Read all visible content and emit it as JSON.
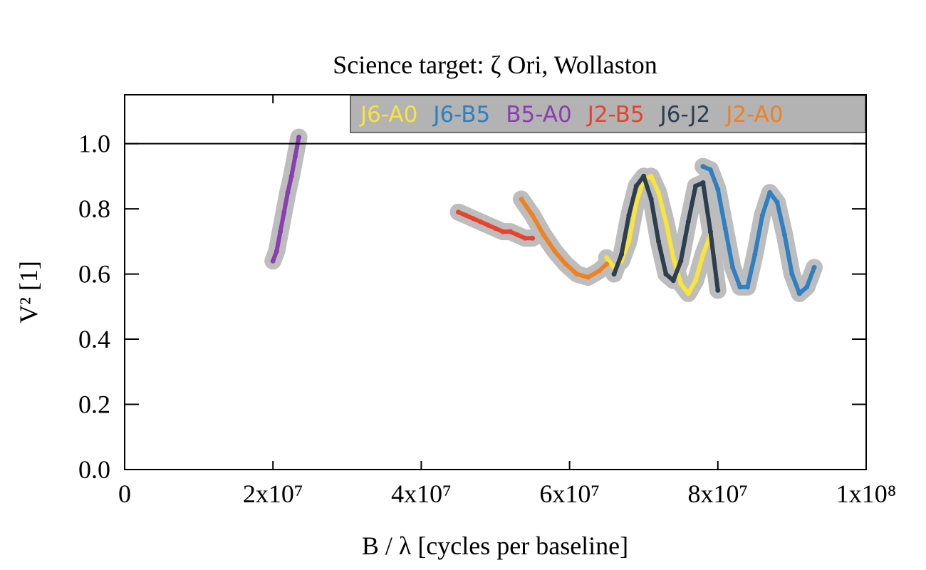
{
  "chart_data": {
    "type": "scatter",
    "title": "Science target: ζ Ori, Wollaston",
    "xlabel": "B / λ [cycles per baseline]",
    "ylabel": "V² [1]",
    "xlim": [
      0,
      100000000
    ],
    "ylim": [
      0,
      1.15
    ],
    "x_ticks": [
      {
        "value": 0,
        "label": "0"
      },
      {
        "value": 20000000,
        "label": "2x10⁷"
      },
      {
        "value": 40000000,
        "label": "4x10⁷"
      },
      {
        "value": 60000000,
        "label": "6x10⁷"
      },
      {
        "value": 80000000,
        "label": "8x10⁷"
      },
      {
        "value": 100000000,
        "label": "1x10⁸"
      }
    ],
    "y_ticks": [
      {
        "value": 0.0,
        "label": "0.0"
      },
      {
        "value": 0.2,
        "label": "0.2"
      },
      {
        "value": 0.4,
        "label": "0.4"
      },
      {
        "value": 0.6,
        "label": "0.6"
      },
      {
        "value": 0.8,
        "label": "0.8"
      },
      {
        "value": 1.0,
        "label": "1.0"
      }
    ],
    "reference_line": 1.0,
    "error_bar_color": "#bdbdbd",
    "legend_position": "top-right",
    "legend_background": "#b3b3b3",
    "series": [
      {
        "name": "J6-A0",
        "color": "#f8e43a",
        "x": [
          65000000,
          66000000,
          67000000,
          68000000,
          69000000,
          70000000,
          71000000,
          72000000,
          73000000,
          74000000,
          75000000,
          76000000,
          77000000,
          78000000,
          79000000
        ],
        "y": [
          0.65,
          0.62,
          0.64,
          0.7,
          0.82,
          0.89,
          0.9,
          0.85,
          0.76,
          0.65,
          0.57,
          0.54,
          0.58,
          0.66,
          0.72
        ]
      },
      {
        "name": "J6-B5",
        "color": "#2f80c0",
        "x": [
          78000000,
          79000000,
          80000000,
          81000000,
          82000000,
          83000000,
          84000000,
          85000000,
          86000000,
          87000000,
          88000000,
          89000000,
          90000000,
          91000000,
          92000000,
          93000000
        ],
        "y": [
          0.93,
          0.92,
          0.86,
          0.74,
          0.62,
          0.56,
          0.56,
          0.66,
          0.78,
          0.85,
          0.82,
          0.72,
          0.6,
          0.54,
          0.56,
          0.62
        ]
      },
      {
        "name": "B5-A0",
        "color": "#8a3fb0",
        "x": [
          20000000,
          20500000,
          21000000,
          21500000,
          22000000,
          22500000,
          23000000,
          23500000
        ],
        "y": [
          0.64,
          0.67,
          0.73,
          0.79,
          0.85,
          0.9,
          0.96,
          1.02
        ]
      },
      {
        "name": "J2-B5",
        "color": "#e8432f",
        "x": [
          45000000,
          46000000,
          47000000,
          48000000,
          49000000,
          50000000,
          51000000,
          52000000,
          53000000,
          54000000,
          55000000
        ],
        "y": [
          0.79,
          0.78,
          0.77,
          0.76,
          0.75,
          0.74,
          0.73,
          0.73,
          0.72,
          0.71,
          0.71
        ]
      },
      {
        "name": "J6-J2",
        "color": "#2c3e50",
        "x": [
          66000000,
          67000000,
          68000000,
          69000000,
          70000000,
          71000000,
          72000000,
          73000000,
          74000000,
          75000000,
          76000000,
          77000000,
          78000000,
          79000000,
          80000000
        ],
        "y": [
          0.6,
          0.66,
          0.78,
          0.87,
          0.9,
          0.83,
          0.7,
          0.6,
          0.58,
          0.64,
          0.76,
          0.87,
          0.88,
          0.73,
          0.55
        ]
      },
      {
        "name": "J2-A0",
        "color": "#ee8221",
        "x": [
          53500000,
          55000000,
          56500000,
          58000000,
          59500000,
          61000000,
          62500000,
          64000000,
          65000000
        ],
        "y": [
          0.83,
          0.78,
          0.72,
          0.67,
          0.63,
          0.6,
          0.59,
          0.61,
          0.63
        ]
      }
    ]
  }
}
